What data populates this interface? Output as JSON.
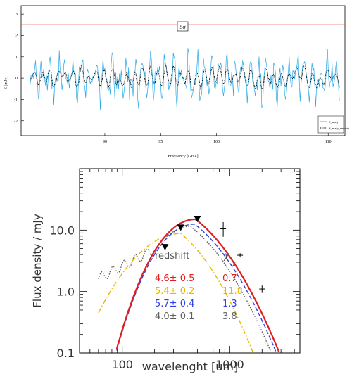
{
  "chart_data": [
    {
      "type": "line",
      "title": "",
      "xlabel": "Frequency [GHZ]",
      "ylabel": "S [mJy]",
      "xlim": [
        82.5,
        111.5
      ],
      "ylim": [
        -2.7,
        3.4
      ],
      "xticks": [
        90,
        95,
        100,
        110
      ],
      "yticks": [
        -2,
        -1,
        0,
        1,
        2,
        3
      ],
      "annotation": "5σ",
      "threshold": 2.5,
      "threshold_color": "#e03030",
      "legend": {
        "placement": "bottom-right",
        "entries": [
          "S_maly",
          "S_maly_smooth"
        ]
      },
      "series": [
        {
          "name": "S_maly",
          "color": "#29a9e8",
          "style": "solid"
        },
        {
          "name": "S_maly_smooth",
          "color": "#000000",
          "style": "dotted"
        }
      ]
    },
    {
      "type": "line",
      "title": "",
      "xlabel": "wavelenght [um]",
      "ylabel": "Flux density / mJy",
      "xscale": "log",
      "yscale": "log",
      "xlim": [
        40,
        4500
      ],
      "ylim": [
        0.1,
        100
      ],
      "xtick_labels": [
        "100",
        "1000"
      ],
      "ytick_labels": [
        "0.1",
        "1.0",
        "10.0"
      ],
      "table_headers": {
        "col1": "redshift",
        "col2": "χ",
        "col2_sup": "2"
      },
      "fits": [
        {
          "redshift": "4.6± 0.5",
          "chi2": "0.7",
          "color": "#e02020",
          "style": "solid",
          "peak_wavelength": 480,
          "peak_flux": 15
        },
        {
          "redshift": "5.4± 0.2",
          "chi2": "11.8",
          "color": "#e8b800",
          "style": "dashdot",
          "peak_wavelength": 350,
          "peak_flux": 8.8
        },
        {
          "redshift": "5.7± 0.4",
          "chi2": "1.3",
          "color": "#3040e0",
          "style": "dashed",
          "peak_wavelength": 470,
          "peak_flux": 12.5
        },
        {
          "redshift": "4.0± 0.1",
          "chi2": "3.8",
          "color": "#606060",
          "style": "dotted",
          "peak_wavelength": 430,
          "peak_flux": 11.5
        }
      ],
      "points": {
        "triangles": [
          [
            250,
            5.2
          ],
          [
            350,
            10.8
          ],
          [
            500,
            15
          ]
        ],
        "errorbars": [
          {
            "x": 870,
            "y": 10.5,
            "ylo": 7.8,
            "yhi": 13.5
          },
          {
            "x": 1250,
            "y": 3.9,
            "ylo": 3.6,
            "yhi": 4.2
          },
          {
            "x": 2000,
            "y": 1.1,
            "ylo": 0.95,
            "yhi": 1.25
          }
        ]
      }
    }
  ]
}
